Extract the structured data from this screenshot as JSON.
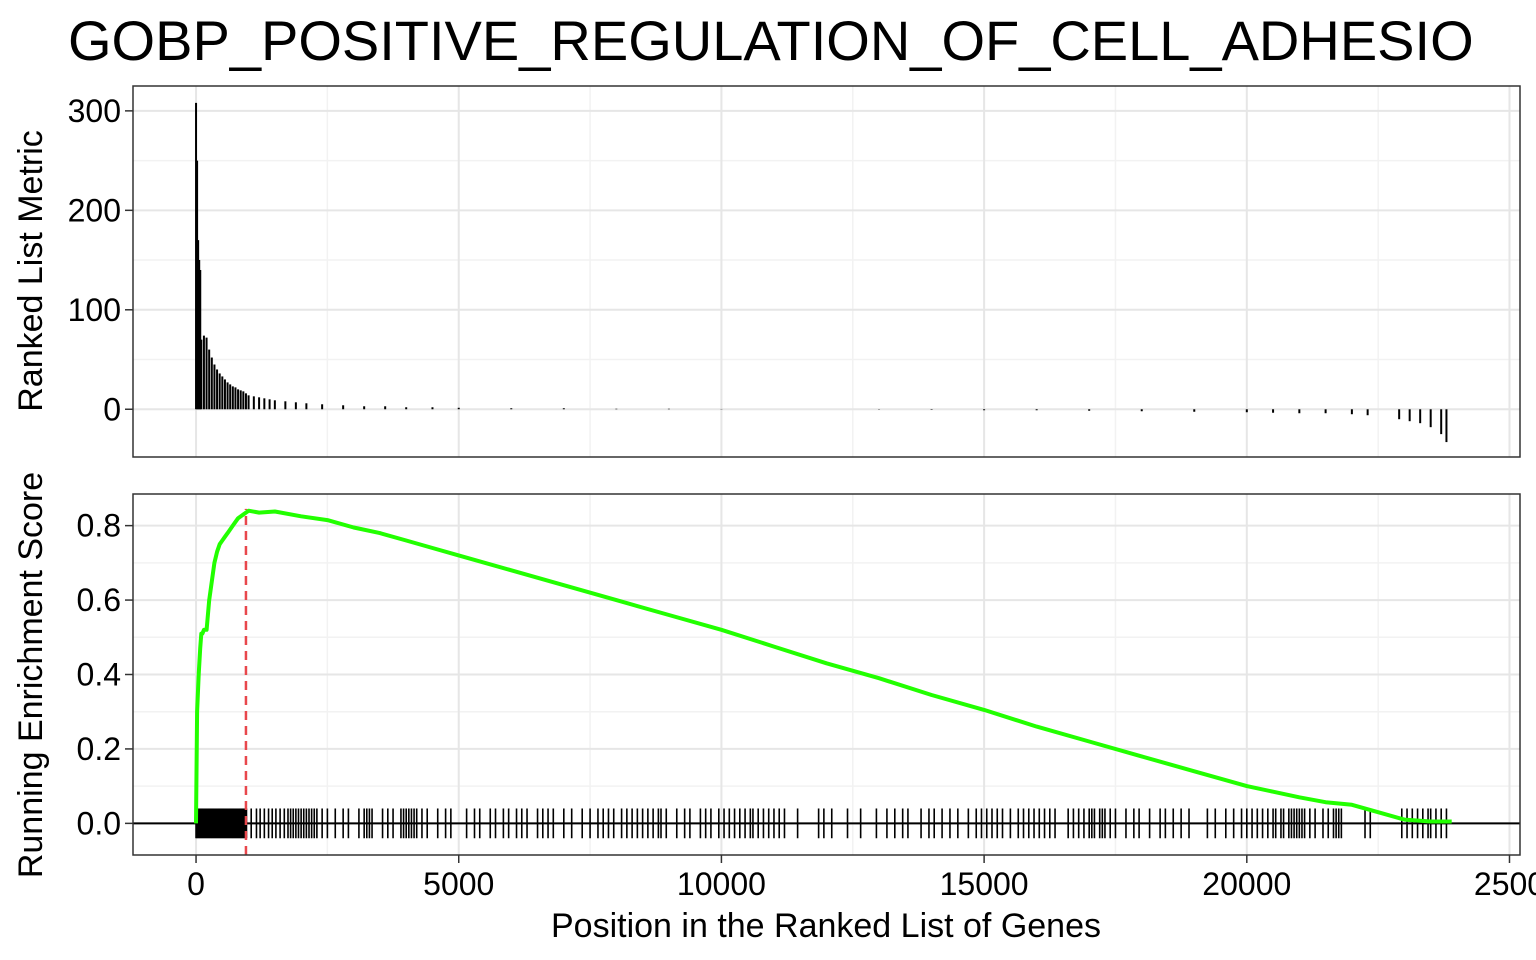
{
  "chart_data": {
    "type": "line",
    "title": "GOBP_POSITIVE_REGULATION_OF_CELL_ADHESIO",
    "xlabel": "Position in the Ranked List of Genes",
    "x_ticks": [
      "0",
      "5000",
      "10000",
      "15000",
      "20000",
      "2500"
    ],
    "xlim": [
      -1200,
      25200
    ],
    "panels": {
      "ranked_metric": {
        "type": "bar",
        "ylabel": "Ranked List Metric",
        "ylim": [
          -48,
          325
        ],
        "y_ticks": [
          "0",
          "100",
          "200",
          "300"
        ],
        "x": [
          0,
          20,
          40,
          60,
          80,
          100,
          150,
          200,
          250,
          300,
          350,
          400,
          450,
          500,
          550,
          600,
          650,
          700,
          750,
          800,
          850,
          900,
          950,
          1000,
          1100,
          1200,
          1300,
          1400,
          1500,
          1700,
          1900,
          2100,
          2400,
          2800,
          3200,
          3600,
          4000,
          4500,
          5000,
          6000,
          7000,
          8000,
          9000,
          10000,
          11000,
          12000,
          13000,
          14000,
          15000,
          16000,
          17000,
          18000,
          19000,
          20000,
          20500,
          21000,
          21500,
          22000,
          22300,
          22900,
          23100,
          23300,
          23500,
          23700,
          23800
        ],
        "values": [
          308,
          250,
          170,
          150,
          140,
          70,
          74,
          72,
          60,
          52,
          45,
          40,
          36,
          33,
          30,
          27,
          25,
          23,
          22,
          20,
          19,
          18,
          16,
          14,
          13,
          12,
          11,
          10,
          9,
          8,
          7,
          6,
          5,
          4,
          3,
          3,
          2,
          2,
          1.5,
          1,
          1,
          0.5,
          0.5,
          0.3,
          0,
          0,
          -0.3,
          -0.5,
          -1,
          -1,
          -1.5,
          -2,
          -2.5,
          -3,
          -3.5,
          -4,
          -4,
          -5,
          -6,
          -10,
          -12,
          -14,
          -18,
          -25,
          -33
        ]
      },
      "running_es": {
        "type": "line",
        "ylabel": "Running Enrichment Score",
        "ylim": [
          -0.085,
          0.885
        ],
        "y_ticks": [
          "0.0",
          "0.2",
          "0.4",
          "0.6",
          "0.8"
        ],
        "series": [
          {
            "color": "#22ff00",
            "x": [
              0,
              20,
              50,
              80,
              100,
              120,
              150,
              200,
              250,
              300,
              350,
              400,
              450,
              500,
              550,
              600,
              700,
              800,
              900,
              1000,
              1200,
              1500,
              2000,
              2500,
              3000,
              3500,
              4000,
              4500,
              5000,
              6000,
              7000,
              8000,
              9000,
              10000,
              11000,
              12000,
              13000,
              14000,
              15000,
              16000,
              17000,
              18000,
              19000,
              20000,
              20500,
              21000,
              21500,
              22000,
              22500,
              23000,
              23500,
              23900
            ],
            "y": [
              0.0,
              0.3,
              0.4,
              0.47,
              0.51,
              0.51,
              0.52,
              0.52,
              0.6,
              0.65,
              0.7,
              0.73,
              0.75,
              0.76,
              0.77,
              0.78,
              0.8,
              0.82,
              0.83,
              0.84,
              0.835,
              0.838,
              0.825,
              0.815,
              0.795,
              0.78,
              0.76,
              0.74,
              0.72,
              0.68,
              0.64,
              0.6,
              0.56,
              0.52,
              0.475,
              0.43,
              0.39,
              0.345,
              0.305,
              0.26,
              0.22,
              0.18,
              0.14,
              0.1,
              0.085,
              0.07,
              0.057,
              0.05,
              0.03,
              0.01,
              0.005,
              0.005
            ]
          }
        ],
        "peak_x": 950,
        "peak_line_color": "#e8474c",
        "hit_positions": [
          0,
          20,
          40,
          60,
          80,
          100,
          120,
          140,
          160,
          180,
          200,
          220,
          240,
          260,
          280,
          300,
          320,
          340,
          360,
          380,
          400,
          420,
          440,
          460,
          480,
          500,
          520,
          540,
          560,
          580,
          600,
          620,
          640,
          660,
          680,
          700,
          720,
          740,
          760,
          780,
          800,
          820,
          840,
          860,
          880,
          900,
          920,
          940,
          960,
          1050,
          1150,
          1220,
          1300,
          1380,
          1450,
          1520,
          1600,
          1680,
          1750,
          1800,
          1850,
          1900,
          1950,
          2000,
          2050,
          2100,
          2150,
          2200,
          2250,
          2300,
          2400,
          2500,
          2650,
          2800,
          2900,
          3100,
          3200,
          3250,
          3300,
          3350,
          3550,
          3650,
          3750,
          3900,
          3950,
          4000,
          4050,
          4100,
          4150,
          4200,
          4300,
          4400,
          4600,
          4750,
          4850,
          5150,
          5300,
          5400,
          5600,
          5700,
          5850,
          5950,
          6100,
          6200,
          6300,
          6500,
          6600,
          6700,
          6800,
          7000,
          7150,
          7350,
          7500,
          7650,
          7750,
          7850,
          7950,
          8100,
          8200,
          8300,
          8400,
          8500,
          8600,
          8700,
          8800,
          8850,
          8950,
          9150,
          9300,
          9400,
          9600,
          9700,
          9800,
          9950,
          10050,
          10150,
          10250,
          10350,
          10450,
          10550,
          10600,
          10700,
          10800,
          10900,
          11000,
          11100,
          11200,
          11450,
          11850,
          11950,
          12100,
          12400,
          12650,
          12950,
          13150,
          13300,
          13450,
          13550,
          13800,
          13950,
          14050,
          14200,
          14350,
          14500,
          14700,
          14850,
          14950,
          15050,
          15150,
          15250,
          15350,
          15500,
          15650,
          15750,
          15850,
          15950,
          16050,
          16150,
          16250,
          16350,
          16600,
          16700,
          16800,
          16900,
          17000,
          17050,
          17100,
          17200,
          17250,
          17300,
          17400,
          17500,
          17700,
          17850,
          17950,
          18150,
          18350,
          18450,
          18600,
          18750,
          18900,
          19250,
          19400,
          19600,
          19750,
          19900,
          20000,
          20100,
          20200,
          20300,
          20400,
          20500,
          20550,
          20650,
          20700,
          20800,
          20850,
          20900,
          20950,
          21000,
          21050,
          21100,
          21200,
          21300,
          21450,
          21550,
          21650,
          21700,
          21750,
          21800,
          22250,
          22350,
          22950,
          23050,
          23150,
          23250,
          23350,
          23450,
          23500,
          23600,
          23700,
          23800
        ]
      }
    }
  }
}
